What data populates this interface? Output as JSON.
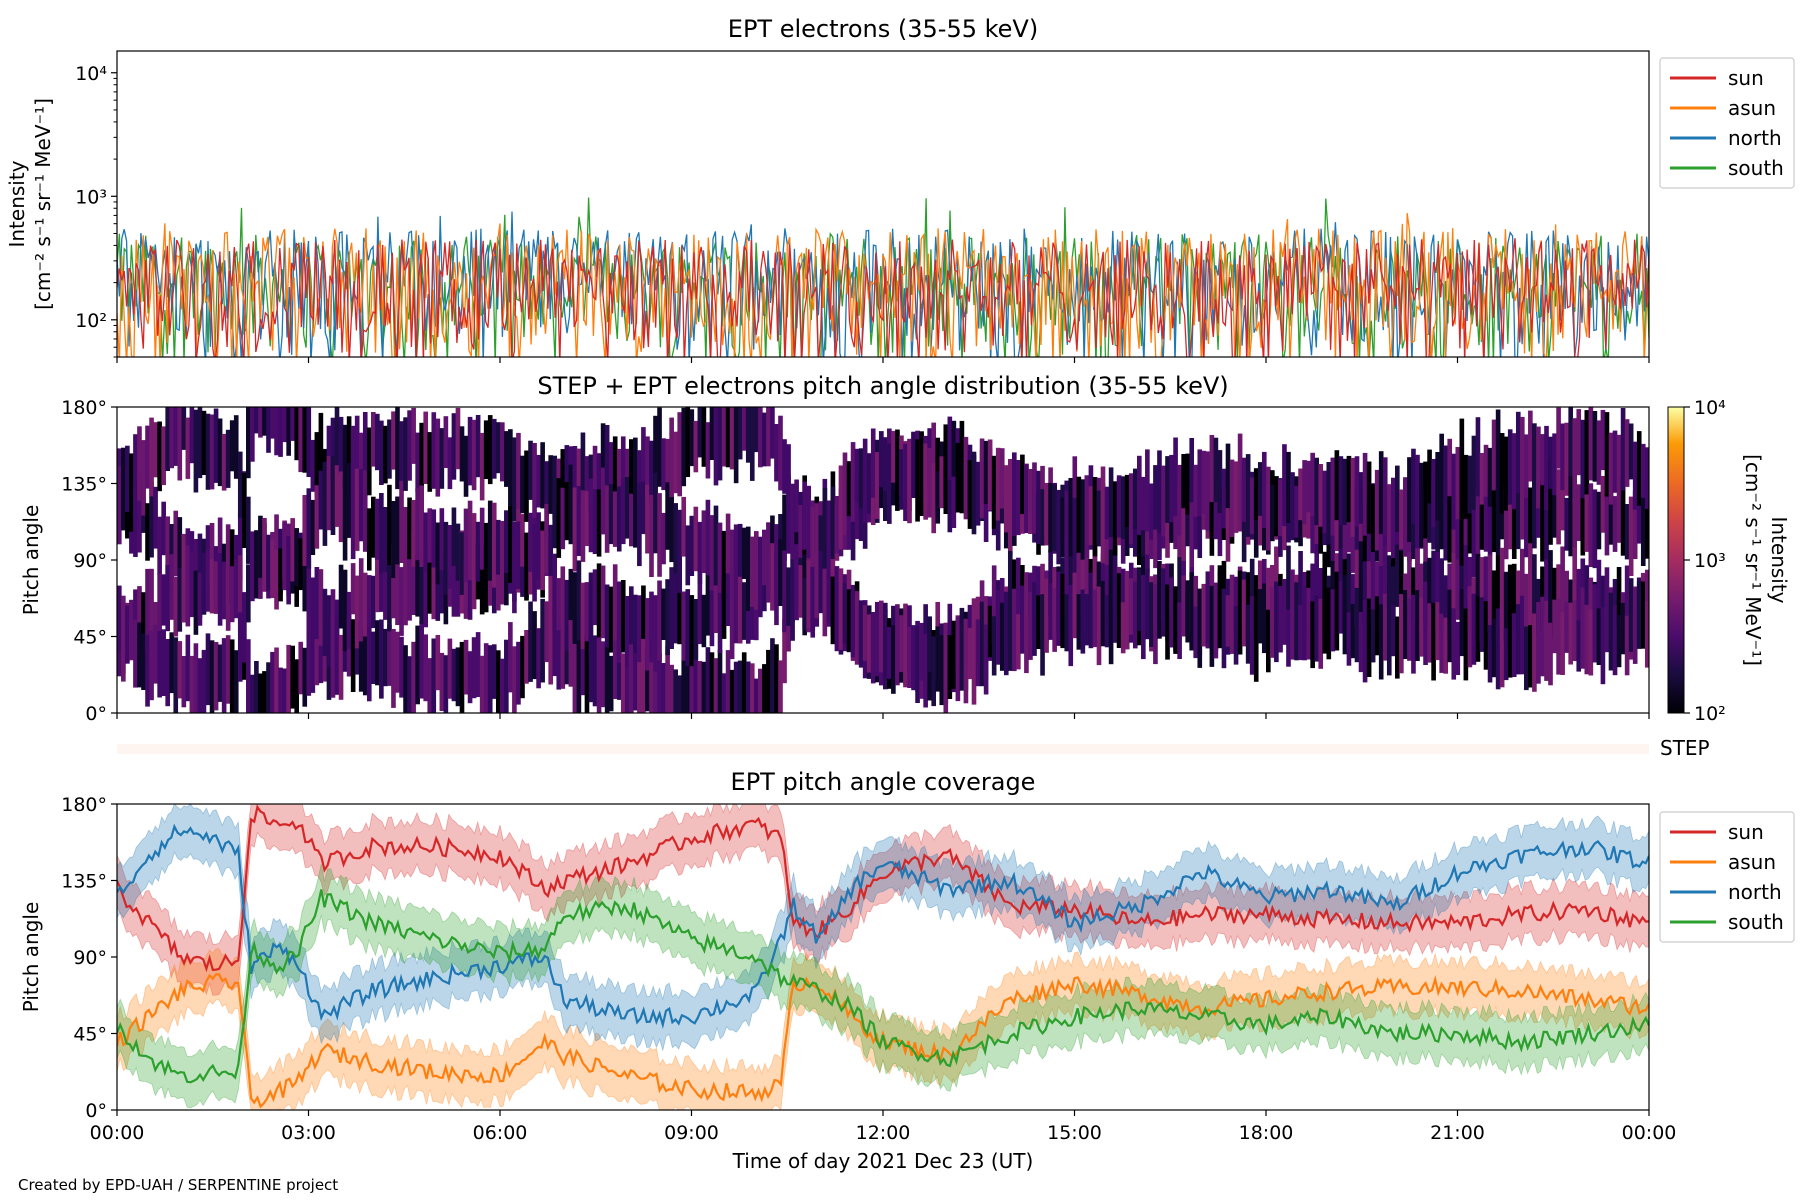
{
  "footer": {
    "credit": "Created by EPD-UAH / SERPENTINE project"
  },
  "colors": {
    "sun": "#d62728",
    "asun": "#ff7f0e",
    "north": "#1f77b4",
    "south": "#2ca02c",
    "step_bar": "#fff5f0"
  },
  "chart_data": [
    {
      "id": "intensity",
      "type": "line",
      "title": "EPT electrons (35-55 keV)",
      "ylabel_line1": "Intensity",
      "ylabel_line2": "[cm⁻² s⁻¹ sr⁻¹ MeV⁻¹]",
      "yscale": "log",
      "ylim": [
        50,
        15000
      ],
      "yticks": [
        {
          "value": 100,
          "label": "10²"
        },
        {
          "value": 1000,
          "label": "10³"
        },
        {
          "value": 10000,
          "label": "10⁴"
        }
      ],
      "xlim": [
        0,
        24
      ],
      "x_unit": "hours",
      "legend": {
        "placement": "outside-right",
        "entries": [
          "sun",
          "asun",
          "north",
          "south"
        ]
      },
      "series": [
        {
          "name": "sun",
          "color": "#d62728",
          "typical_range": [
            50,
            450
          ],
          "peak": 500
        },
        {
          "name": "asun",
          "color": "#ff7f0e",
          "typical_range": [
            50,
            550
          ],
          "peak": 800
        },
        {
          "name": "north",
          "color": "#1f77b4",
          "typical_range": [
            50,
            550
          ],
          "peak": 800
        },
        {
          "name": "south",
          "color": "#2ca02c",
          "typical_range": [
            50,
            500
          ],
          "peak": 1000
        }
      ]
    },
    {
      "id": "pad",
      "type": "heatmap",
      "title": "STEP + EPT electrons pitch angle distribution (35-55 keV)",
      "ylabel": "Pitch angle",
      "ylim": [
        0,
        180
      ],
      "yticks": [
        {
          "value": 0,
          "label": "0°"
        },
        {
          "value": 45,
          "label": "45°"
        },
        {
          "value": 90,
          "label": "90°"
        },
        {
          "value": 135,
          "label": "135°"
        },
        {
          "value": 180,
          "label": "180°"
        }
      ],
      "xlim": [
        0,
        24
      ],
      "colorbar": {
        "label_line1": "Intensity",
        "label_line2": "[cm⁻² s⁻¹ sr⁻¹ MeV⁻¹]",
        "scale": "log",
        "range": [
          100,
          10000
        ],
        "ticks": [
          {
            "value": 100,
            "label": "10²"
          },
          {
            "value": 1000,
            "label": "10³"
          },
          {
            "value": 10000,
            "label": "10⁴"
          }
        ],
        "colormap": "inferno"
      },
      "typical_intensity_range": [
        100,
        300
      ],
      "step_bar_label": "STEP"
    },
    {
      "id": "coverage",
      "type": "line",
      "title": "EPT pitch angle coverage",
      "ylabel": "Pitch angle",
      "xlabel": "Time of day 2021 Dec 23 (UT)",
      "ylim": [
        0,
        180
      ],
      "yticks": [
        {
          "value": 0,
          "label": "0°"
        },
        {
          "value": 45,
          "label": "45°"
        },
        {
          "value": 90,
          "label": "90°"
        },
        {
          "value": 135,
          "label": "135°"
        },
        {
          "value": 180,
          "label": "180°"
        }
      ],
      "xlim": [
        0,
        24
      ],
      "xticks": [
        {
          "value": 0,
          "label": "00:00"
        },
        {
          "value": 3,
          "label": "03:00"
        },
        {
          "value": 6,
          "label": "06:00"
        },
        {
          "value": 9,
          "label": "09:00"
        },
        {
          "value": 12,
          "label": "12:00"
        },
        {
          "value": 15,
          "label": "15:00"
        },
        {
          "value": 18,
          "label": "18:00"
        },
        {
          "value": 21,
          "label": "21:00"
        },
        {
          "value": 24,
          "label": "00:00"
        }
      ],
      "legend": {
        "placement": "outside-right",
        "entries": [
          "sun",
          "asun",
          "north",
          "south"
        ]
      },
      "band_halfwidth_deg": 15,
      "x": [
        0,
        0.5,
        1,
        1.5,
        1.9,
        2.1,
        2.5,
        2.8,
        3.2,
        4,
        5,
        6,
        6.7,
        7,
        8,
        9,
        10,
        10.4,
        10.6,
        11,
        11.5,
        12,
        13,
        14,
        15,
        16,
        17,
        18,
        19,
        20,
        21,
        22,
        23,
        24
      ],
      "series": [
        {
          "name": "sun",
          "color": "#d62728",
          "values": [
            130,
            110,
            90,
            85,
            88,
            175,
            168,
            170,
            145,
            155,
            155,
            150,
            130,
            135,
            145,
            160,
            168,
            160,
            110,
            105,
            120,
            140,
            150,
            120,
            118,
            110,
            115,
            115,
            112,
            110,
            110,
            115,
            118,
            110
          ]
        },
        {
          "name": "asun",
          "color": "#ff7f0e",
          "values": [
            40,
            55,
            70,
            75,
            75,
            5,
            10,
            15,
            35,
            28,
            22,
            20,
            40,
            32,
            20,
            12,
            10,
            15,
            75,
            75,
            55,
            40,
            32,
            65,
            75,
            68,
            60,
            65,
            70,
            72,
            72,
            70,
            65,
            60
          ]
        },
        {
          "name": "north",
          "color": "#1f77b4",
          "values": [
            125,
            150,
            165,
            160,
            150,
            85,
            95,
            90,
            55,
            70,
            78,
            85,
            90,
            65,
            55,
            55,
            68,
            100,
            120,
            100,
            130,
            145,
            130,
            135,
            110,
            120,
            140,
            125,
            130,
            120,
            140,
            150,
            155,
            145
          ]
        },
        {
          "name": "south",
          "color": "#2ca02c",
          "values": [
            50,
            30,
            20,
            22,
            22,
            95,
            85,
            90,
            125,
            110,
            100,
            92,
            95,
            115,
            120,
            100,
            90,
            78,
            75,
            70,
            60,
            40,
            30,
            45,
            55,
            60,
            55,
            50,
            55,
            45,
            45,
            40,
            45,
            50
          ]
        }
      ]
    }
  ]
}
